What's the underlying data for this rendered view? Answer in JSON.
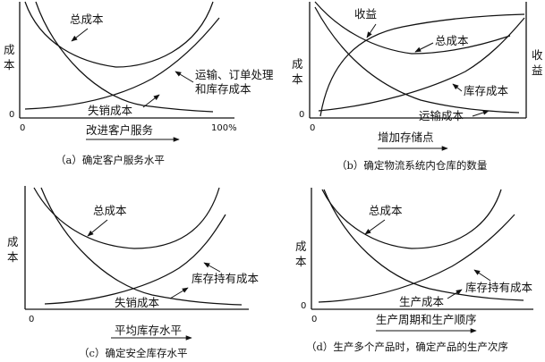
{
  "panels": [
    {
      "id": "a",
      "ylabel": [
        "成",
        "本"
      ],
      "origin_x": "0",
      "origin_y": "0",
      "x_end": "100%",
      "xlabel": "改进客户服务",
      "curves": [
        "总成本",
        "运输、订单处理",
        "和库存成本",
        "失销成本"
      ],
      "caption": "（a）确定客户服务水平"
    },
    {
      "id": "b",
      "ylabel": [
        "成",
        "本"
      ],
      "ylabel_right": [
        "收",
        "益"
      ],
      "origin_y": "0",
      "origin_x": "0",
      "xlabel": "增加存储点",
      "curves": [
        "收益",
        "总成本",
        "库存成本",
        "运输成本"
      ],
      "caption": "（b）确定物流系统内仓库的数量"
    },
    {
      "id": "c",
      "ylabel": [
        "成",
        "本"
      ],
      "origin_x": "0",
      "xlabel": "平均库存水平",
      "curves": [
        "总成本",
        "库存持有成本",
        "失销成本"
      ],
      "caption": "（c）确定安全库存水平"
    },
    {
      "id": "d",
      "ylabel": [
        "成",
        "本"
      ],
      "origin_y": "0",
      "origin_x": "0",
      "xlabel": "生产周期和生产顺序",
      "curves": [
        "总成本",
        "库存持有成本",
        "生产成本"
      ],
      "caption": "（d）生产多个产品时，确定产品的生产次序"
    }
  ]
}
